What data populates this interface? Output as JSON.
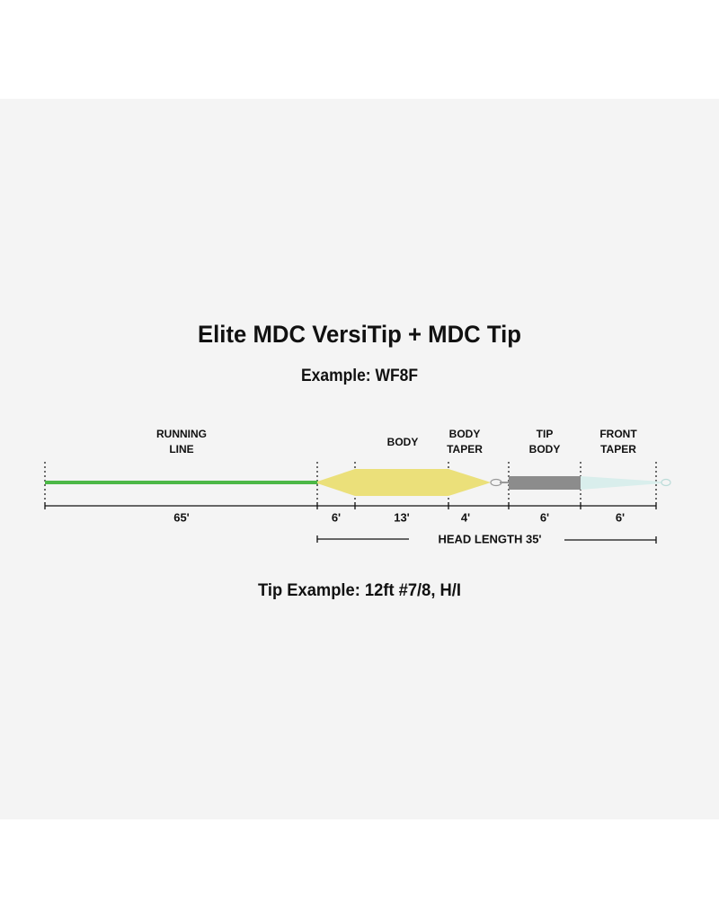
{
  "title": "Elite MDC VersiTip + MDC Tip",
  "subtitle": "Example: WF8F",
  "sections": [
    {
      "lines": [
        "RUNNING",
        "LINE"
      ]
    },
    {
      "lines": [
        "BODY"
      ]
    },
    {
      "lines": [
        "BODY",
        "TAPER"
      ]
    },
    {
      "lines": [
        "TIP",
        "BODY"
      ]
    },
    {
      "lines": [
        "FRONT",
        "TAPER"
      ]
    }
  ],
  "lengths": [
    "65'",
    "6'",
    "13'",
    "4'",
    "6'",
    "6'"
  ],
  "head_length": "HEAD LENGTH 35'",
  "tip_example": "Tip Example: 12ft #7/8, H/I"
}
